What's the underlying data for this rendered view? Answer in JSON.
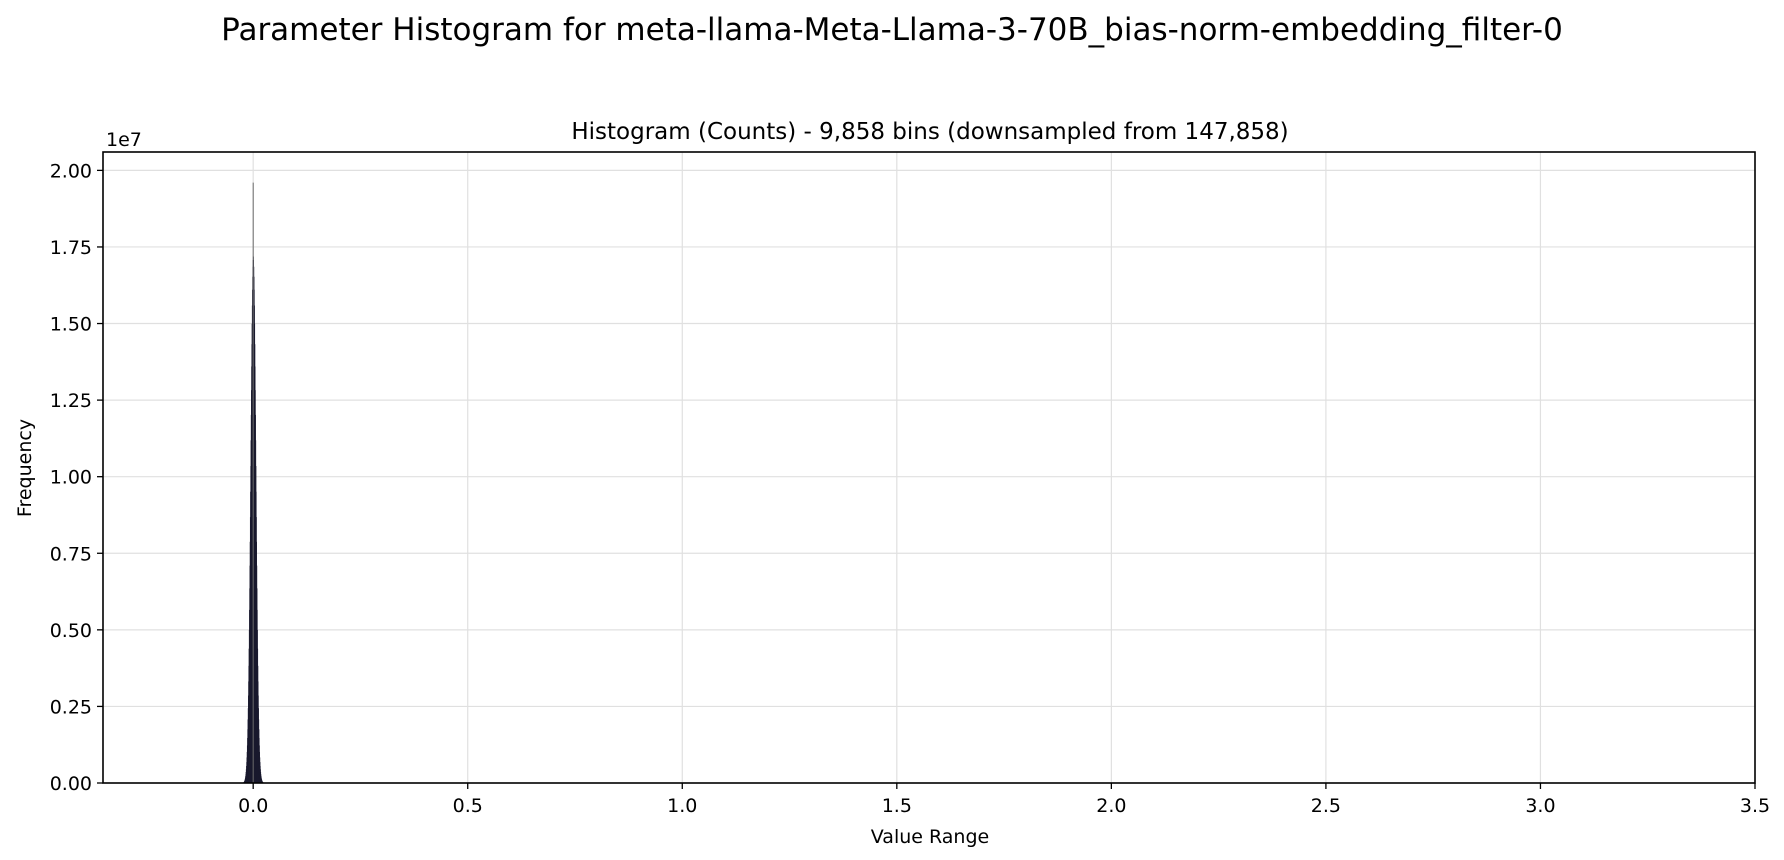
{
  "figure": {
    "suptitle": "Parameter Histogram for meta-llama-Meta-Llama-3-70B_bias-norm-embedding_filter-0"
  },
  "chart_data": {
    "type": "bar",
    "title": "Histogram (Counts) - 9,858 bins (downsampled from 147,858)",
    "xlabel": "Value Range",
    "ylabel": "Frequency",
    "y_offset_text": "1e7",
    "y_scale_multiplier": 10000000,
    "xlim": [
      -0.35,
      3.5
    ],
    "ylim": [
      0,
      20600000
    ],
    "grid": true,
    "x_ticks": [
      0.0,
      0.5,
      1.0,
      1.5,
      2.0,
      2.5,
      3.0,
      3.5
    ],
    "x_tick_labels": [
      "0.0",
      "0.5",
      "1.0",
      "1.5",
      "2.0",
      "2.5",
      "3.0",
      "3.5"
    ],
    "y_ticks": [
      0,
      2500000,
      5000000,
      7500000,
      10000000,
      12500000,
      15000000,
      17500000,
      20000000
    ],
    "y_tick_labels": [
      "0.00",
      "0.25",
      "0.50",
      "0.75",
      "1.00",
      "1.25",
      "1.50",
      "1.75",
      "2.00"
    ],
    "bar_color": "#1a1a2e",
    "series": [
      {
        "distribution": {
          "center": 0.0,
          "std": 0.0062,
          "peak": 17200000,
          "spike_x": 0.0,
          "spike_value": 19600000,
          "range": [
            -0.03,
            0.03
          ]
        }
      }
    ]
  }
}
